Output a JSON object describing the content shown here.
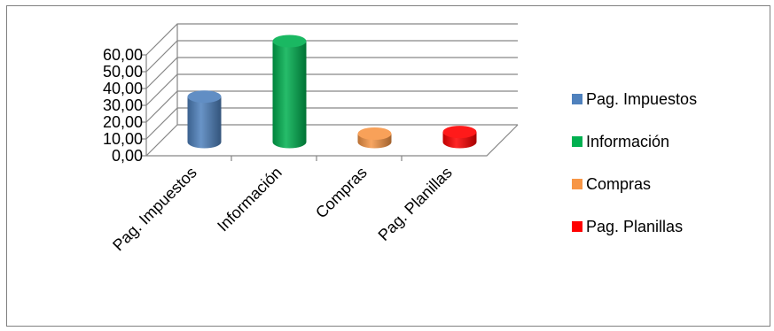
{
  "chart_data": {
    "type": "bar",
    "style": "3d-cylinder",
    "categories": [
      "Pag. Impuestos",
      "Información",
      "Compras",
      "Pag. Planillas"
    ],
    "values": [
      27,
      60,
      5,
      6
    ],
    "colors": [
      "#4F81BD",
      "#00B050",
      "#F79646",
      "#FF0000"
    ],
    "ylim": [
      0,
      60
    ],
    "yticks": [
      "0,00",
      "10,00",
      "20,00",
      "30,00",
      "40,00",
      "50,00",
      "60,00"
    ],
    "title": "",
    "xlabel": "",
    "ylabel": "",
    "grid": true,
    "legend": {
      "position": "right",
      "entries": [
        "Pag. Impuestos",
        "Información",
        "Compras",
        "Pag. Planillas"
      ]
    }
  }
}
